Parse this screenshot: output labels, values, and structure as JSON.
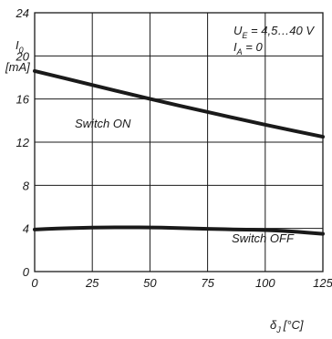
{
  "chart_data": {
    "type": "line",
    "ylabel": {
      "main": "I",
      "sub": "0",
      "unit": "[mA]"
    },
    "xlabel": {
      "main": "δ",
      "sub": "J",
      "unit": "[°C]"
    },
    "xlim": [
      0,
      125
    ],
    "ylim": [
      0,
      24
    ],
    "x_ticks": [
      0,
      25,
      50,
      75,
      100,
      125
    ],
    "y_ticks": [
      0,
      4,
      8,
      12,
      16,
      20,
      24
    ],
    "grid": true,
    "annotations": {
      "line1": {
        "main": "U",
        "sub": "E",
        "rest": " = 4,5…40 V"
      },
      "line2": {
        "main": "I",
        "sub": "A",
        "rest": " = 0"
      }
    },
    "series": [
      {
        "name": "Switch ON",
        "x": [
          0,
          25,
          50,
          75,
          100,
          125
        ],
        "y": [
          18.6,
          17.3,
          16.0,
          14.8,
          13.6,
          12.5
        ]
      },
      {
        "name": "Switch OFF",
        "x": [
          0,
          10,
          20,
          30,
          40,
          50,
          60,
          75,
          90,
          100,
          110,
          125
        ],
        "y": [
          3.9,
          4.0,
          4.05,
          4.1,
          4.1,
          4.1,
          4.05,
          3.95,
          3.9,
          3.85,
          3.75,
          3.5
        ]
      }
    ]
  }
}
